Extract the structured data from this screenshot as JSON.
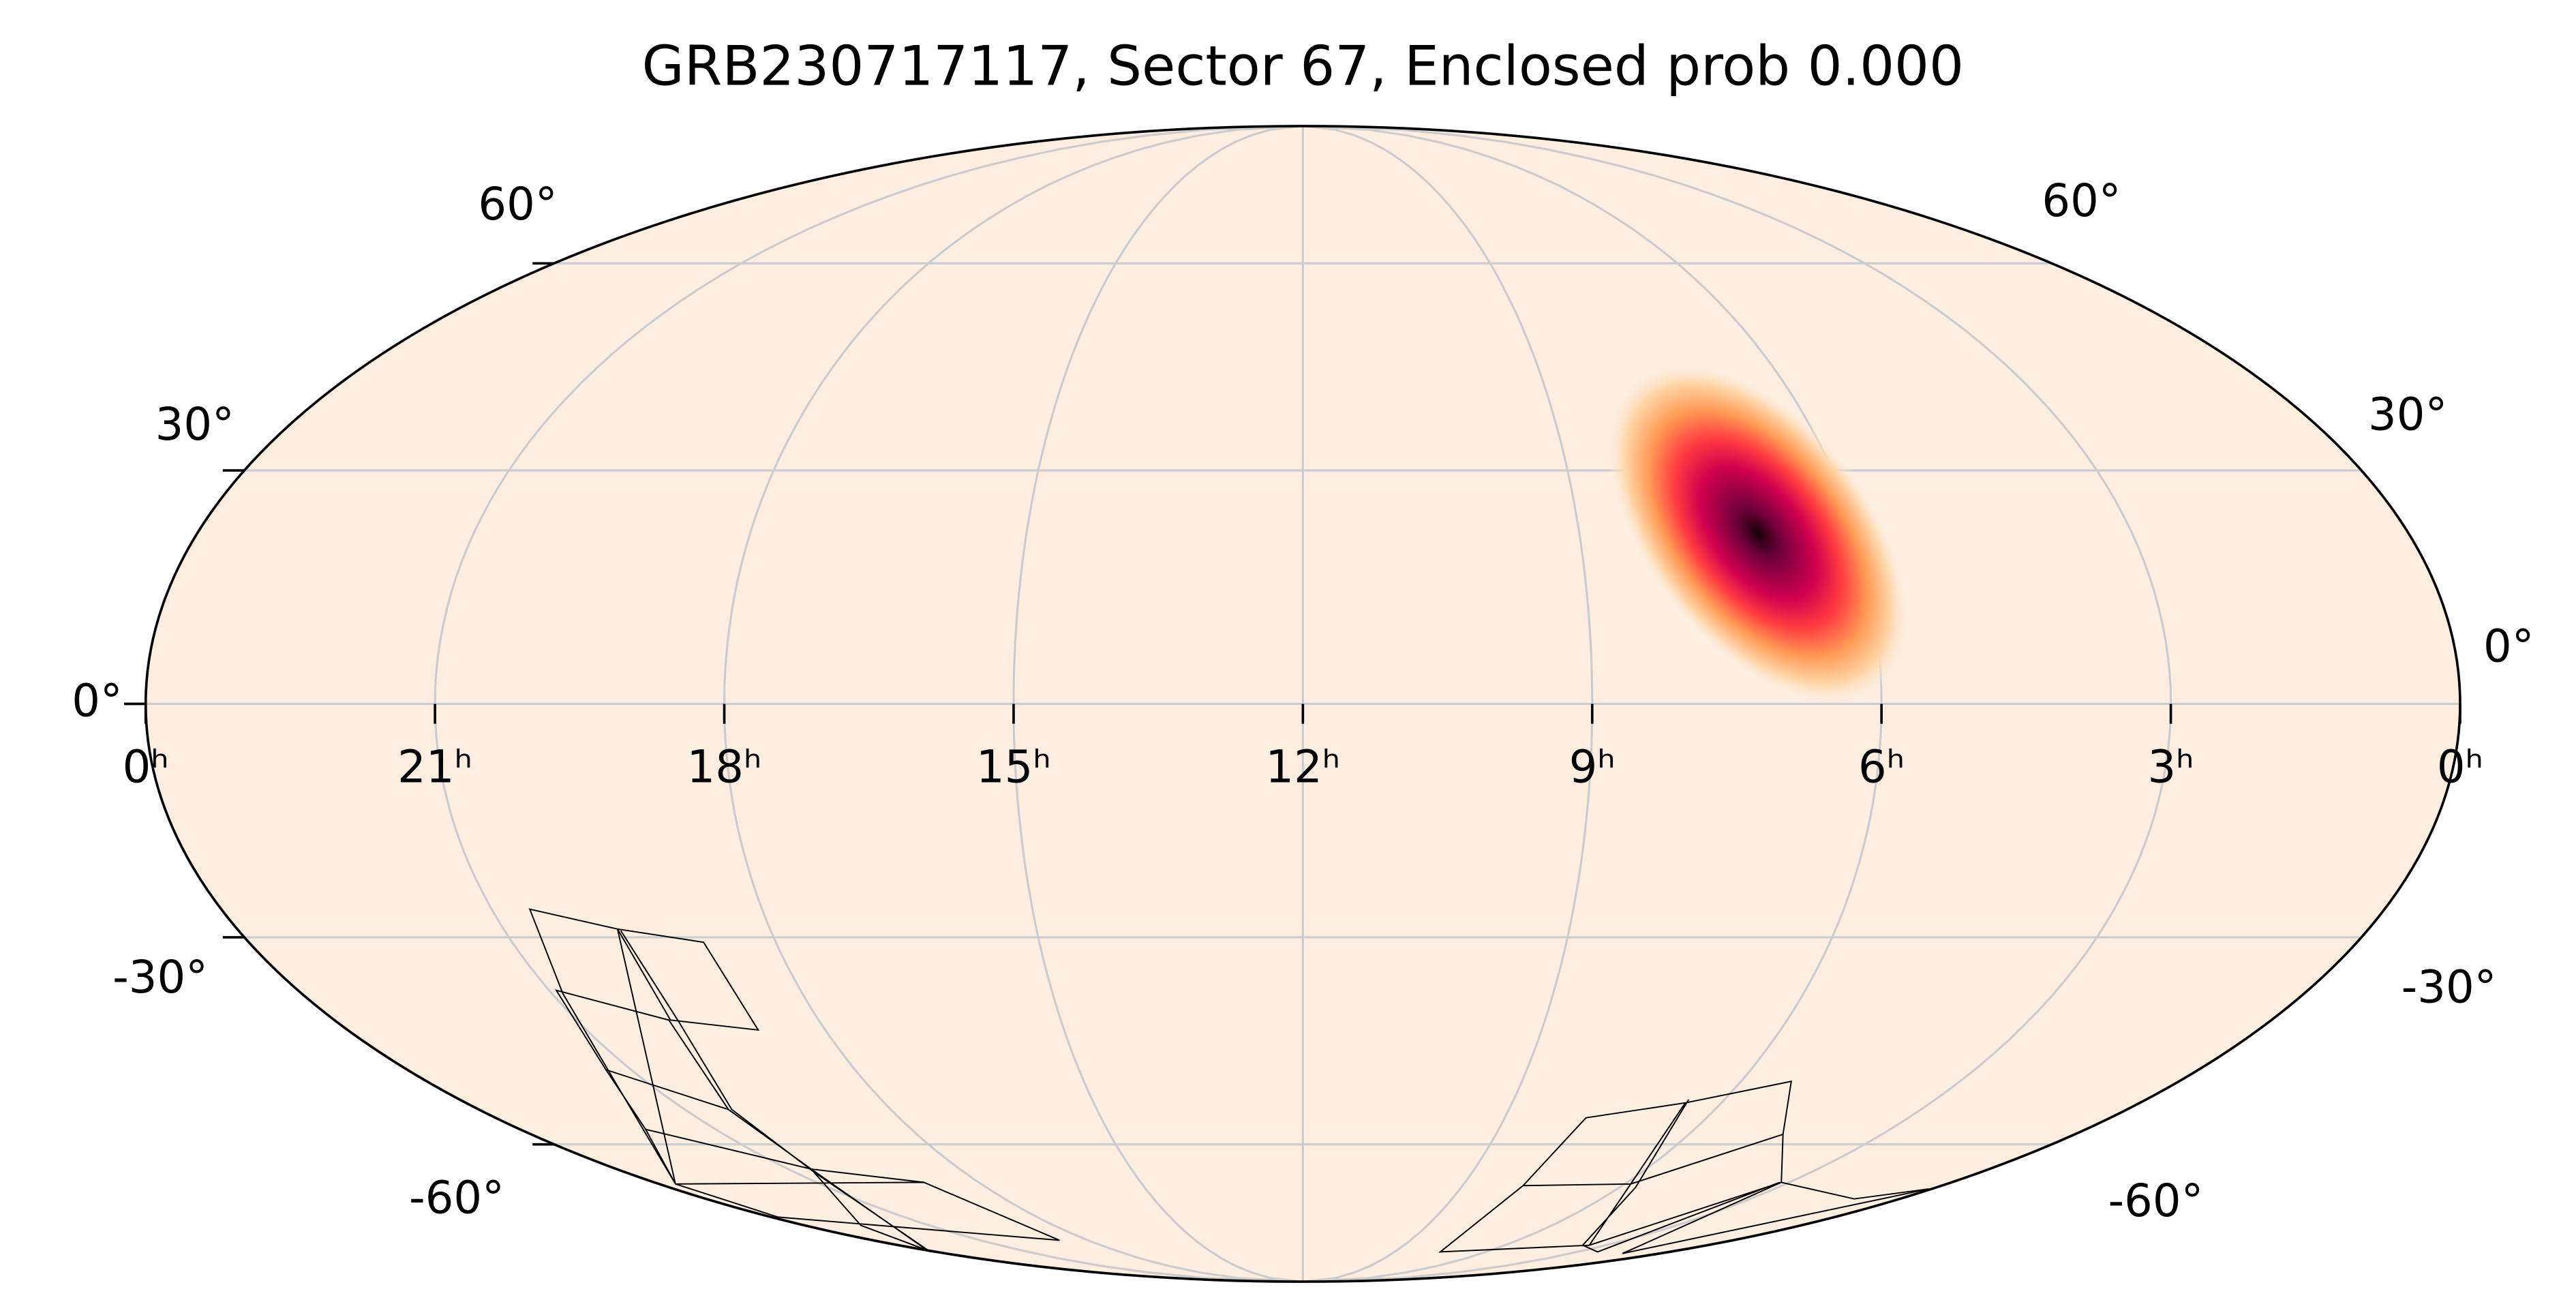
{
  "chart_data": {
    "type": "skymap",
    "title": "GRB230717117, Sector 67, Enclosed prob 0.000",
    "xlim": [
      24,
      0
    ],
    "xticks": [
      {
        "value": 24,
        "label": "0ʰ"
      },
      {
        "value": 21,
        "label": "21ʰ"
      },
      {
        "value": 18,
        "label": "18ʰ"
      },
      {
        "value": 15,
        "label": "15ʰ"
      },
      {
        "value": 12,
        "label": "12ʰ"
      },
      {
        "value": 9,
        "label": "9ʰ"
      },
      {
        "value": 6,
        "label": "6ʰ"
      },
      {
        "value": 3,
        "label": "3ʰ"
      },
      {
        "value": 0,
        "label": "0ʰ"
      }
    ],
    "ylim": [
      -90,
      90
    ],
    "yticks": [
      {
        "value": -60,
        "label": "-60°"
      },
      {
        "value": -30,
        "label": "-30°"
      },
      {
        "value": 0,
        "label": "0°"
      },
      {
        "value": 30,
        "label": "30°"
      },
      {
        "value": 60,
        "label": "60°"
      }
    ],
    "grid": true
  }
}
